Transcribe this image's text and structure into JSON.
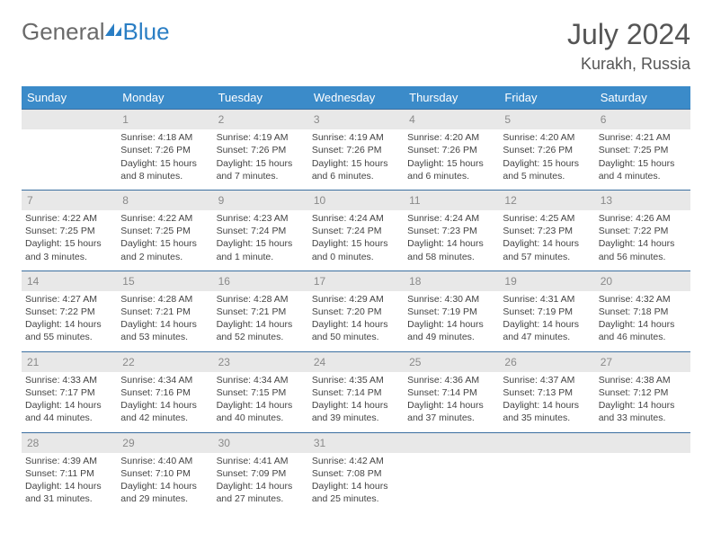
{
  "logo": {
    "text1": "General",
    "text2": "Blue"
  },
  "title": "July 2024",
  "location": "Kurakh, Russia",
  "colors": {
    "header_bg": "#3b8bc9",
    "header_text": "#ffffff",
    "daynum_bg": "#e8e8e8",
    "daynum_text": "#8a8a8a",
    "body_text": "#444444",
    "rule": "#3b6fa0",
    "logo_gray": "#6a6a6a",
    "logo_blue": "#2a7ec4"
  },
  "weekday_labels": [
    "Sunday",
    "Monday",
    "Tuesday",
    "Wednesday",
    "Thursday",
    "Friday",
    "Saturday"
  ],
  "weeks": [
    {
      "nums": [
        "",
        "1",
        "2",
        "3",
        "4",
        "5",
        "6"
      ],
      "cells": [
        null,
        {
          "sunrise": "Sunrise: 4:18 AM",
          "sunset": "Sunset: 7:26 PM",
          "daylight": "Daylight: 15 hours and 8 minutes."
        },
        {
          "sunrise": "Sunrise: 4:19 AM",
          "sunset": "Sunset: 7:26 PM",
          "daylight": "Daylight: 15 hours and 7 minutes."
        },
        {
          "sunrise": "Sunrise: 4:19 AM",
          "sunset": "Sunset: 7:26 PM",
          "daylight": "Daylight: 15 hours and 6 minutes."
        },
        {
          "sunrise": "Sunrise: 4:20 AM",
          "sunset": "Sunset: 7:26 PM",
          "daylight": "Daylight: 15 hours and 6 minutes."
        },
        {
          "sunrise": "Sunrise: 4:20 AM",
          "sunset": "Sunset: 7:26 PM",
          "daylight": "Daylight: 15 hours and 5 minutes."
        },
        {
          "sunrise": "Sunrise: 4:21 AM",
          "sunset": "Sunset: 7:25 PM",
          "daylight": "Daylight: 15 hours and 4 minutes."
        }
      ]
    },
    {
      "nums": [
        "7",
        "8",
        "9",
        "10",
        "11",
        "12",
        "13"
      ],
      "cells": [
        {
          "sunrise": "Sunrise: 4:22 AM",
          "sunset": "Sunset: 7:25 PM",
          "daylight": "Daylight: 15 hours and 3 minutes."
        },
        {
          "sunrise": "Sunrise: 4:22 AM",
          "sunset": "Sunset: 7:25 PM",
          "daylight": "Daylight: 15 hours and 2 minutes."
        },
        {
          "sunrise": "Sunrise: 4:23 AM",
          "sunset": "Sunset: 7:24 PM",
          "daylight": "Daylight: 15 hours and 1 minute."
        },
        {
          "sunrise": "Sunrise: 4:24 AM",
          "sunset": "Sunset: 7:24 PM",
          "daylight": "Daylight: 15 hours and 0 minutes."
        },
        {
          "sunrise": "Sunrise: 4:24 AM",
          "sunset": "Sunset: 7:23 PM",
          "daylight": "Daylight: 14 hours and 58 minutes."
        },
        {
          "sunrise": "Sunrise: 4:25 AM",
          "sunset": "Sunset: 7:23 PM",
          "daylight": "Daylight: 14 hours and 57 minutes."
        },
        {
          "sunrise": "Sunrise: 4:26 AM",
          "sunset": "Sunset: 7:22 PM",
          "daylight": "Daylight: 14 hours and 56 minutes."
        }
      ]
    },
    {
      "nums": [
        "14",
        "15",
        "16",
        "17",
        "18",
        "19",
        "20"
      ],
      "cells": [
        {
          "sunrise": "Sunrise: 4:27 AM",
          "sunset": "Sunset: 7:22 PM",
          "daylight": "Daylight: 14 hours and 55 minutes."
        },
        {
          "sunrise": "Sunrise: 4:28 AM",
          "sunset": "Sunset: 7:21 PM",
          "daylight": "Daylight: 14 hours and 53 minutes."
        },
        {
          "sunrise": "Sunrise: 4:28 AM",
          "sunset": "Sunset: 7:21 PM",
          "daylight": "Daylight: 14 hours and 52 minutes."
        },
        {
          "sunrise": "Sunrise: 4:29 AM",
          "sunset": "Sunset: 7:20 PM",
          "daylight": "Daylight: 14 hours and 50 minutes."
        },
        {
          "sunrise": "Sunrise: 4:30 AM",
          "sunset": "Sunset: 7:19 PM",
          "daylight": "Daylight: 14 hours and 49 minutes."
        },
        {
          "sunrise": "Sunrise: 4:31 AM",
          "sunset": "Sunset: 7:19 PM",
          "daylight": "Daylight: 14 hours and 47 minutes."
        },
        {
          "sunrise": "Sunrise: 4:32 AM",
          "sunset": "Sunset: 7:18 PM",
          "daylight": "Daylight: 14 hours and 46 minutes."
        }
      ]
    },
    {
      "nums": [
        "21",
        "22",
        "23",
        "24",
        "25",
        "26",
        "27"
      ],
      "cells": [
        {
          "sunrise": "Sunrise: 4:33 AM",
          "sunset": "Sunset: 7:17 PM",
          "daylight": "Daylight: 14 hours and 44 minutes."
        },
        {
          "sunrise": "Sunrise: 4:34 AM",
          "sunset": "Sunset: 7:16 PM",
          "daylight": "Daylight: 14 hours and 42 minutes."
        },
        {
          "sunrise": "Sunrise: 4:34 AM",
          "sunset": "Sunset: 7:15 PM",
          "daylight": "Daylight: 14 hours and 40 minutes."
        },
        {
          "sunrise": "Sunrise: 4:35 AM",
          "sunset": "Sunset: 7:14 PM",
          "daylight": "Daylight: 14 hours and 39 minutes."
        },
        {
          "sunrise": "Sunrise: 4:36 AM",
          "sunset": "Sunset: 7:14 PM",
          "daylight": "Daylight: 14 hours and 37 minutes."
        },
        {
          "sunrise": "Sunrise: 4:37 AM",
          "sunset": "Sunset: 7:13 PM",
          "daylight": "Daylight: 14 hours and 35 minutes."
        },
        {
          "sunrise": "Sunrise: 4:38 AM",
          "sunset": "Sunset: 7:12 PM",
          "daylight": "Daylight: 14 hours and 33 minutes."
        }
      ]
    },
    {
      "nums": [
        "28",
        "29",
        "30",
        "31",
        "",
        "",
        ""
      ],
      "cells": [
        {
          "sunrise": "Sunrise: 4:39 AM",
          "sunset": "Sunset: 7:11 PM",
          "daylight": "Daylight: 14 hours and 31 minutes."
        },
        {
          "sunrise": "Sunrise: 4:40 AM",
          "sunset": "Sunset: 7:10 PM",
          "daylight": "Daylight: 14 hours and 29 minutes."
        },
        {
          "sunrise": "Sunrise: 4:41 AM",
          "sunset": "Sunset: 7:09 PM",
          "daylight": "Daylight: 14 hours and 27 minutes."
        },
        {
          "sunrise": "Sunrise: 4:42 AM",
          "sunset": "Sunset: 7:08 PM",
          "daylight": "Daylight: 14 hours and 25 minutes."
        },
        null,
        null,
        null
      ]
    }
  ]
}
